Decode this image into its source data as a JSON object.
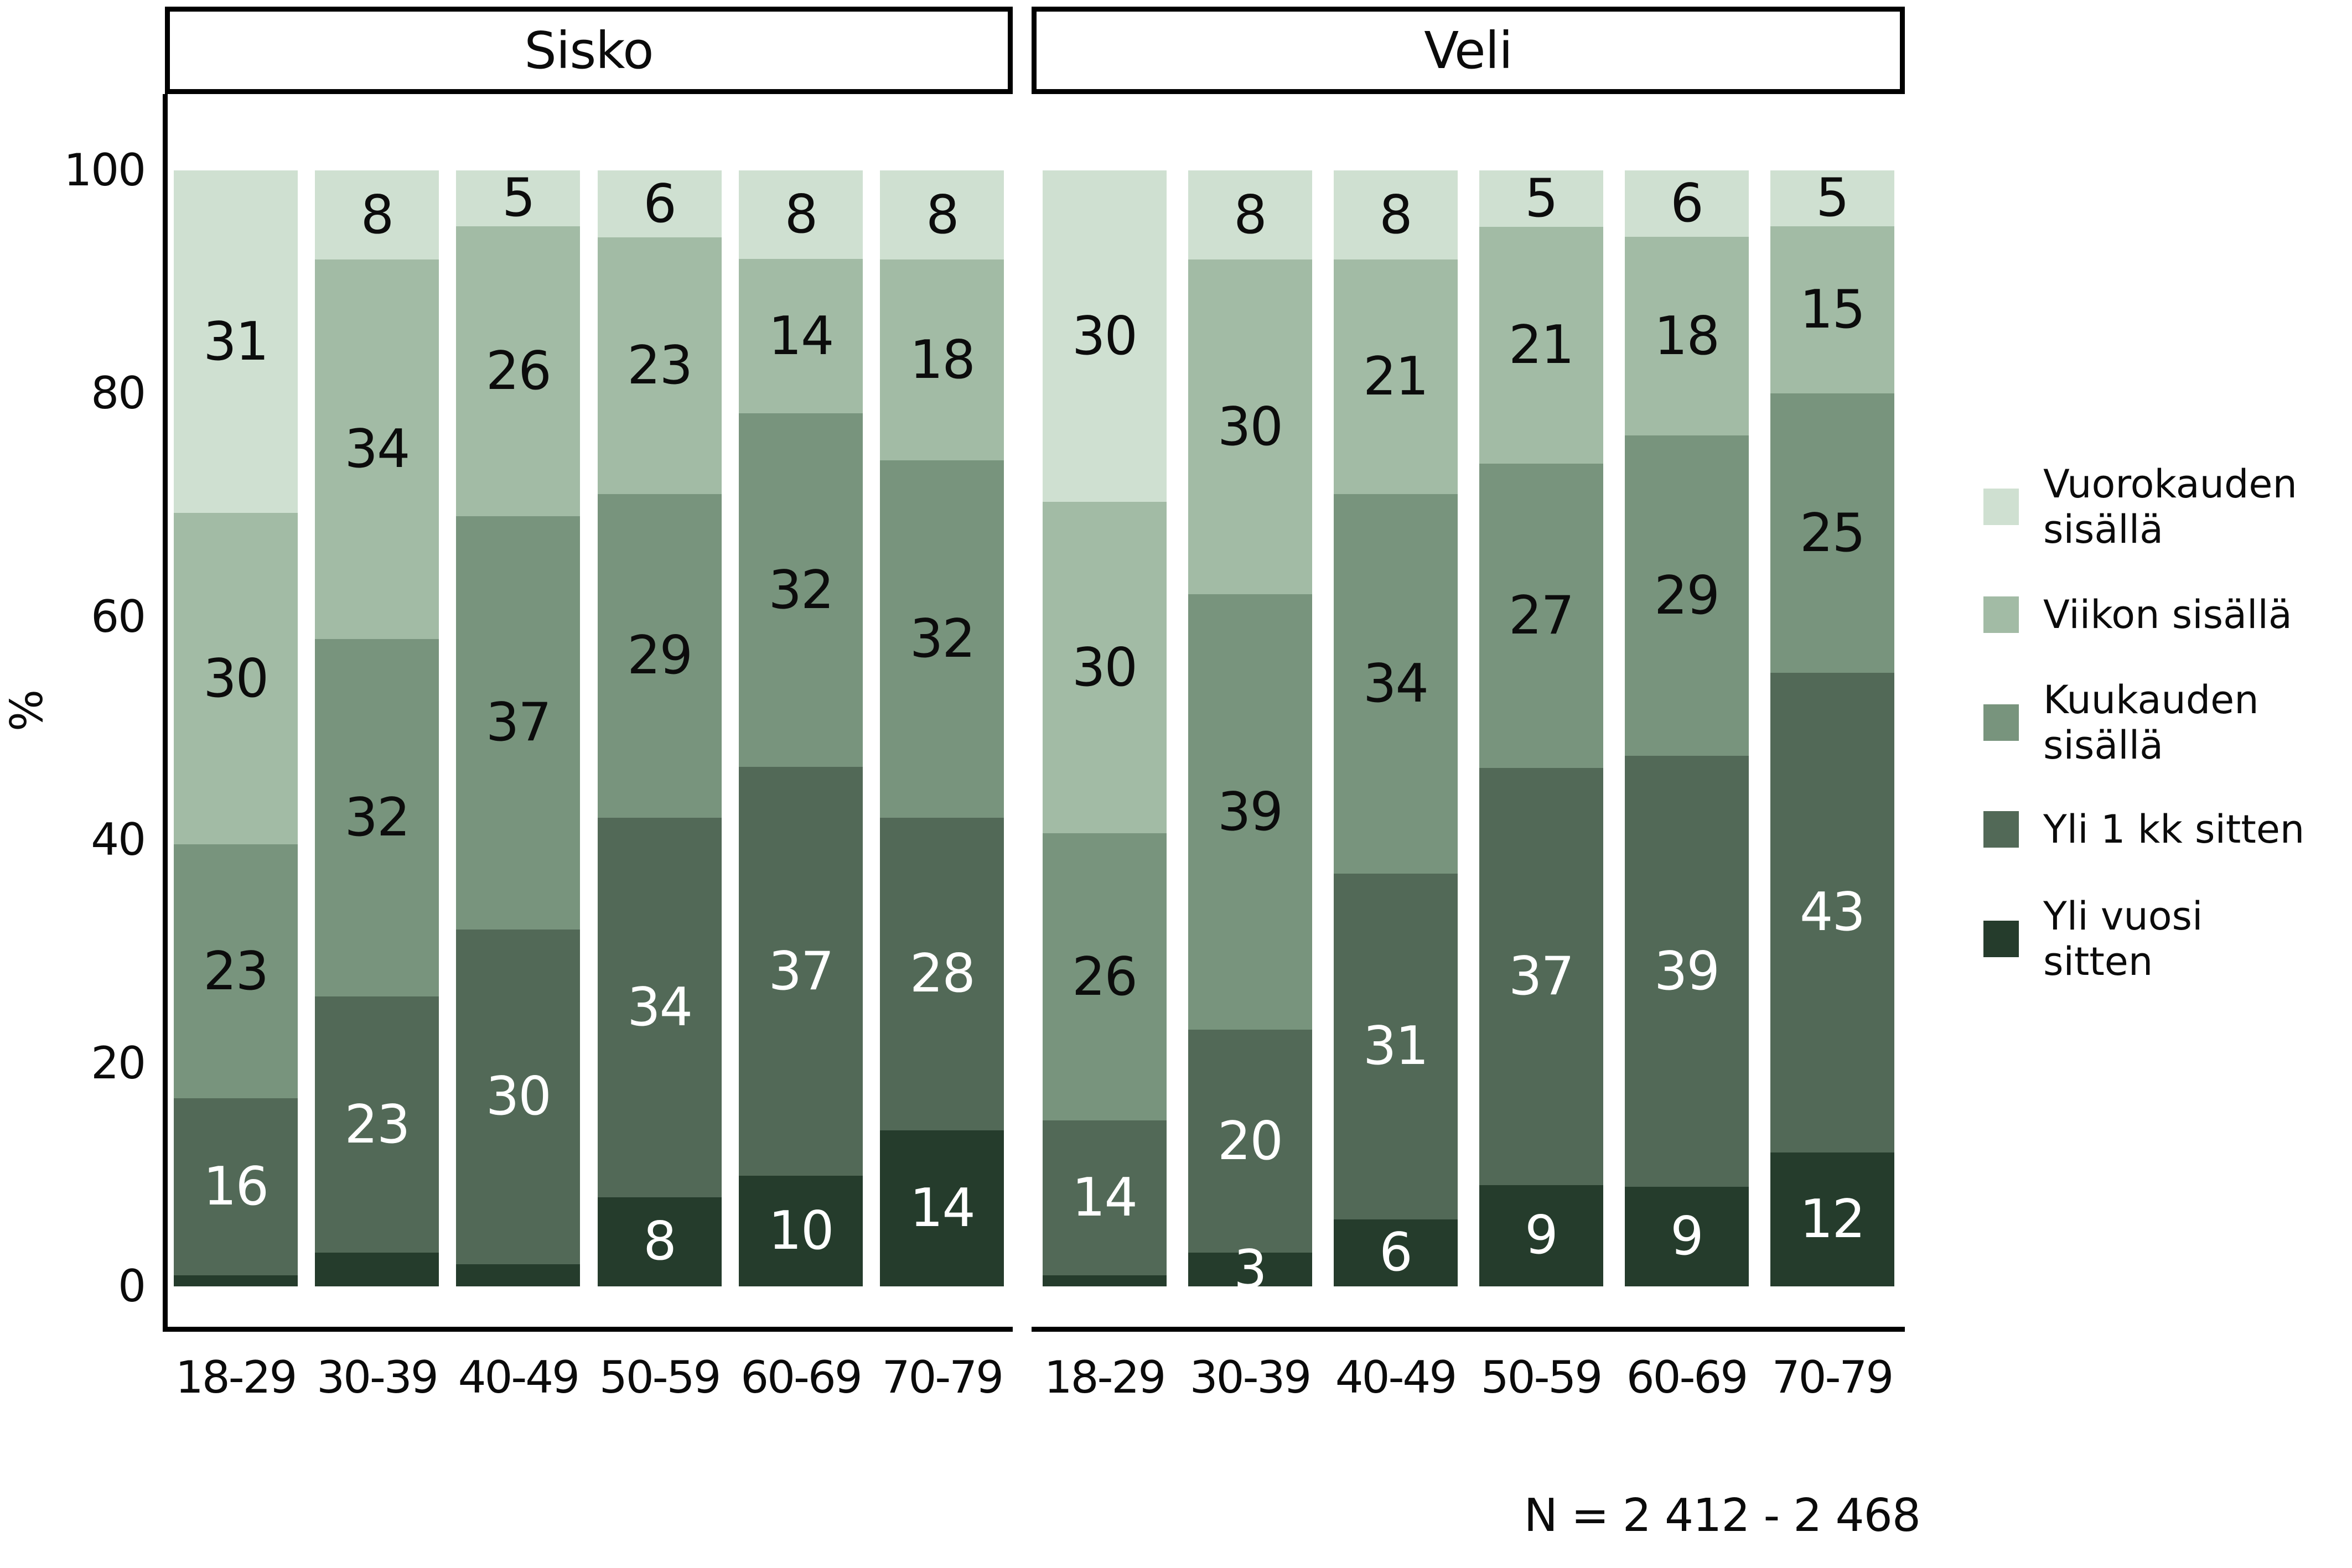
{
  "y_axis": {
    "label": "%",
    "ticks": [
      "100",
      "80",
      "60",
      "40",
      "20",
      "0"
    ]
  },
  "legend": {
    "items": [
      {
        "label": "Vuorokauden\nsisällä",
        "color": "#cfe0d1"
      },
      {
        "label": "Viikon sisällä",
        "color": "#a2bba5"
      },
      {
        "label": "Kuukauden\nsisällä",
        "color": "#78947d"
      },
      {
        "label": "Yli 1 kk sitten",
        "color": "#526957"
      },
      {
        "label": "Yli vuosi\nsitten",
        "color": "#253c2c"
      }
    ]
  },
  "note": {
    "text": "N = 2 412 - 2 468"
  },
  "chart_data": {
    "type": "bar",
    "subtype": "stacked-percent",
    "ylabel": "%",
    "ylim": [
      0,
      100
    ],
    "yticks": [
      100,
      80,
      60,
      40,
      20,
      0
    ],
    "grid": false,
    "legend_position": "right",
    "categories": [
      "18-29",
      "30-39",
      "40-49",
      "50-59",
      "60-69",
      "70-79"
    ],
    "stack_order_top_to_bottom": [
      "Vuorokauden sisällä",
      "Viikon sisällä",
      "Kuukauden sisällä",
      "Yli 1 kk sitten",
      "Yli vuosi sitten"
    ],
    "label_text_colors": [
      "#0c0c0c",
      "#0c0c0c",
      "#0c0c0c",
      "#ffffff",
      "#ffffff"
    ],
    "facets": [
      {
        "title": "Sisko",
        "series": [
          {
            "name": "Vuorokauden sisällä",
            "values": [
              31,
              8,
              5,
              6,
              8,
              8
            ],
            "labels": [
              "31",
              "8",
              "5",
              "6",
              "8",
              "8"
            ]
          },
          {
            "name": "Viikon sisällä",
            "values": [
              30,
              34,
              26,
              23,
              14,
              18
            ],
            "labels": [
              "30",
              "34",
              "26",
              "23",
              "14",
              "18"
            ]
          },
          {
            "name": "Kuukauden sisällä",
            "values": [
              23,
              32,
              37,
              29,
              32,
              32
            ],
            "labels": [
              "23",
              "32",
              "37",
              "29",
              "32",
              "32"
            ]
          },
          {
            "name": "Yli 1 kk sitten",
            "values": [
              16,
              23,
              30,
              34,
              37,
              28
            ],
            "labels": [
              "16",
              "23",
              "30",
              "34",
              "37",
              "28"
            ]
          },
          {
            "name": "Yli vuosi sitten",
            "values": [
              1,
              3,
              2,
              8,
              10,
              14
            ],
            "labels": [
              null,
              null,
              null,
              "8",
              "10",
              "14"
            ]
          }
        ]
      },
      {
        "title": "Veli",
        "series": [
          {
            "name": "Vuorokauden sisällä",
            "values": [
              30,
              8,
              8,
              5,
              6,
              5
            ],
            "labels": [
              "30",
              "8",
              "8",
              "5",
              "6",
              "5"
            ]
          },
          {
            "name": "Viikon sisällä",
            "values": [
              30,
              30,
              21,
              21,
              18,
              15
            ],
            "labels": [
              "30",
              "30",
              "21",
              "21",
              "18",
              "15"
            ]
          },
          {
            "name": "Kuukauden sisällä",
            "values": [
              26,
              39,
              34,
              27,
              29,
              25
            ],
            "labels": [
              "26",
              "39",
              "34",
              "27",
              "29",
              "25"
            ]
          },
          {
            "name": "Yli 1 kk sitten",
            "values": [
              14,
              20,
              31,
              37,
              39,
              43
            ],
            "labels": [
              "14",
              "20",
              "31",
              "37",
              "39",
              "43"
            ]
          },
          {
            "name": "Yli vuosi sitten",
            "values": [
              1,
              3,
              6,
              9,
              9,
              12
            ],
            "labels": [
              null,
              "3",
              "6",
              "9",
              "9",
              "12"
            ]
          }
        ]
      }
    ],
    "note": "N = 2 412 - 2 468"
  }
}
